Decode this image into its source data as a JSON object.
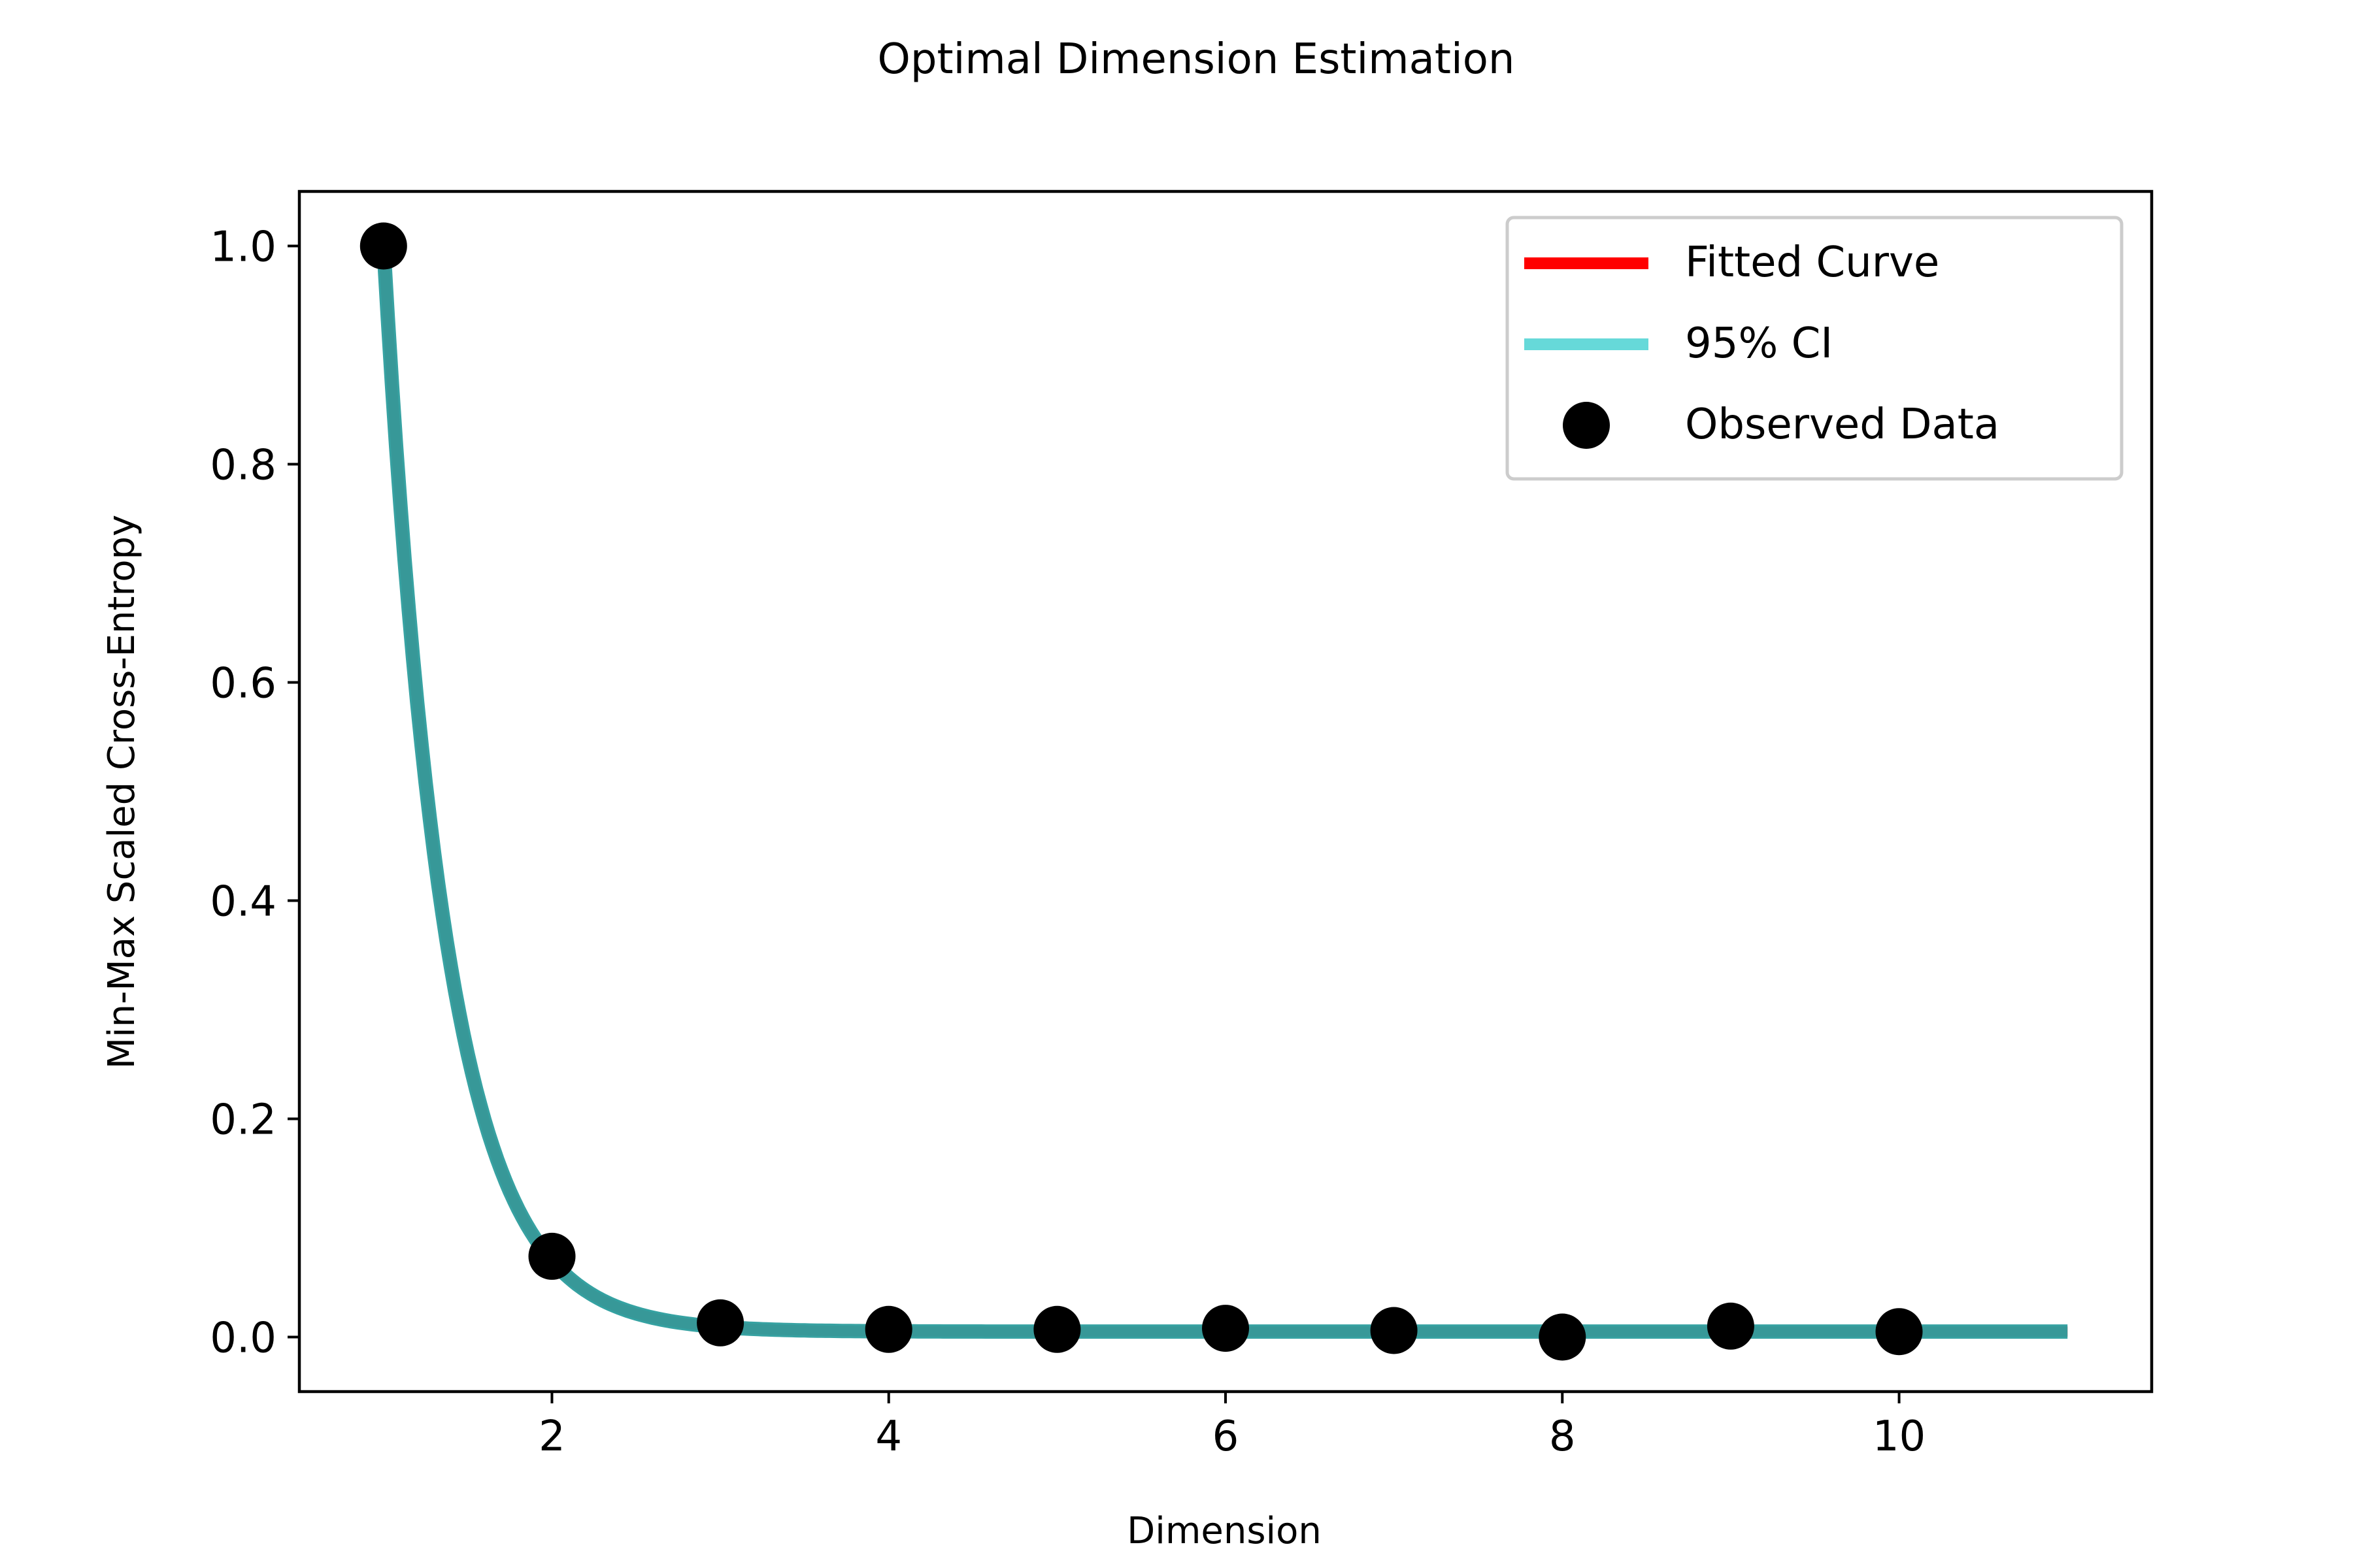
{
  "chart_data": {
    "type": "line",
    "title": "Optimal Dimension Estimation",
    "xlabel": "Dimension",
    "ylabel": "Min-Max Scaled Cross-Entropy",
    "xlim": [
      0.5,
      11.5
    ],
    "ylim": [
      -0.05,
      1.05
    ],
    "xticks": [
      2,
      4,
      6,
      8,
      10
    ],
    "xtick_labels": [
      "2",
      "4",
      "6",
      "8",
      "10"
    ],
    "yticks": [
      0.0,
      0.2,
      0.4,
      0.6,
      0.8,
      1.0
    ],
    "ytick_labels": [
      "0.0",
      "0.2",
      "0.4",
      "0.6",
      "0.8",
      "1.0"
    ],
    "grid": false,
    "legend_position": "top-right",
    "series": [
      {
        "name": "Fitted Curve",
        "kind": "line",
        "color": "#ff0000",
        "model": "exponential decay",
        "x_range": [
          1,
          11
        ],
        "y_start": 1.0,
        "y_at_2": 0.07,
        "y_asymptote": 0.005
      },
      {
        "name": "95% CI",
        "kind": "band",
        "color": "#66d9d9",
        "display_color": "#2f9e9e",
        "x_range": [
          1,
          11
        ]
      },
      {
        "name": "Observed Data",
        "kind": "scatter",
        "color": "#000000",
        "x": [
          1,
          2,
          3,
          4,
          5,
          6,
          7,
          8,
          9,
          10
        ],
        "y": [
          1.0,
          0.074,
          0.013,
          0.007,
          0.007,
          0.008,
          0.006,
          0.0,
          0.01,
          0.005
        ]
      }
    ]
  }
}
